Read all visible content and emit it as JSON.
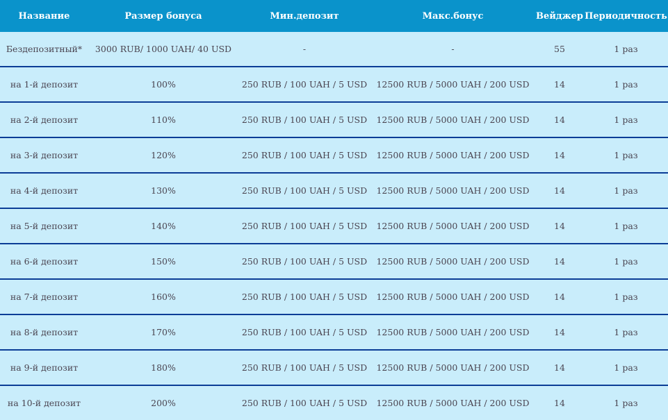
{
  "table": {
    "headers": [
      "Название",
      "Размер бонуса",
      "Мин.депозит",
      "Макс.бонус",
      "Вейджер",
      "Периодичность"
    ],
    "rows": [
      [
        "Бездепозитный*",
        "3000 RUB/ 1000 UAH/ 40 USD",
        "-",
        "-",
        "55",
        "1 раз"
      ],
      [
        "на 1-й депозит",
        "100%",
        "250 RUB / 100 UAH / 5 USD",
        "12500 RUB / 5000 UAH / 200 USD",
        "14",
        "1 раз"
      ],
      [
        "на 2-й депозит",
        "110%",
        "250 RUB / 100 UAH / 5 USD",
        "12500 RUB / 5000 UAH / 200 USD",
        "14",
        "1 раз"
      ],
      [
        "на 3-й депозит",
        "120%",
        "250 RUB / 100 UAH / 5 USD",
        "12500 RUB / 5000 UAH / 200 USD",
        "14",
        "1 раз"
      ],
      [
        "на 4-й депозит",
        "130%",
        "250 RUB / 100 UAH / 5 USD",
        "12500 RUB / 5000 UAH / 200 USD",
        "14",
        "1 раз"
      ],
      [
        "на 5-й депозит",
        "140%",
        "250 RUB / 100 UAH / 5 USD",
        "12500 RUB / 5000 UAH / 200 USD",
        "14",
        "1 раз"
      ],
      [
        "на 6-й депозит",
        "150%",
        "250 RUB / 100 UAH / 5 USD",
        "12500 RUB / 5000 UAH / 200 USD",
        "14",
        "1 раз"
      ],
      [
        "на 7-й депозит",
        "160%",
        "250 RUB / 100 UAH / 5 USD",
        "12500 RUB / 5000 UAH / 200 USD",
        "14",
        "1 раз"
      ],
      [
        "на 8-й депозит",
        "170%",
        "250 RUB / 100 UAH / 5 USD",
        "12500 RUB / 5000 UAH / 200 USD",
        "14",
        "1 раз"
      ],
      [
        "на 9-й депозит",
        "180%",
        "250 RUB / 100 UAH / 5 USD",
        "12500 RUB / 5000 UAH / 200 USD",
        "14",
        "1 раз"
      ],
      [
        "на 10-й депозит",
        "200%",
        "250 RUB / 100 UAH / 5 USD",
        "12500 RUB / 5000 UAH / 200 USD",
        "14",
        "1 раз"
      ]
    ]
  },
  "colors": {
    "header_bg": "#0a93cb",
    "row_bg": "#c9edfb",
    "row_border": "#0b3d96"
  }
}
